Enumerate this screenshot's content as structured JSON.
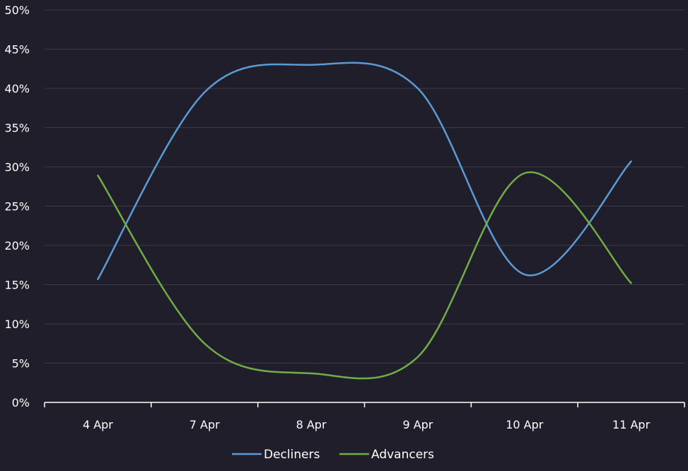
{
  "chart_data": {
    "type": "line",
    "categories": [
      "4 Apr",
      "7 Apr",
      "8 Apr",
      "9 Apr",
      "10 Apr",
      "11 Apr"
    ],
    "ylim": [
      0,
      50
    ],
    "y_ticks": [
      "0%",
      "5%",
      "10%",
      "15%",
      "20%",
      "25%",
      "30%",
      "35%",
      "40%",
      "45%",
      "50%"
    ],
    "grid": true,
    "legend_position": "bottom",
    "series": [
      {
        "name": "Decliners",
        "color": "#5b9bd5",
        "values": [
          15.7,
          39.5,
          43.0,
          40.0,
          16.3,
          30.7
        ]
      },
      {
        "name": "Advancers",
        "color": "#70ad47",
        "values": [
          28.9,
          7.5,
          3.7,
          5.8,
          29.2,
          15.2
        ]
      }
    ]
  }
}
